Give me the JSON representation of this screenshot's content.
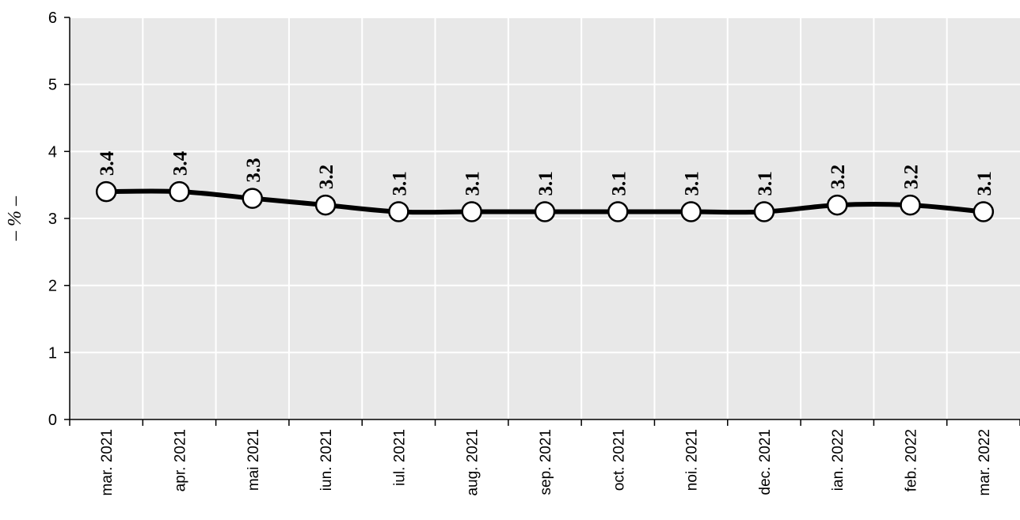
{
  "chart_data": {
    "type": "line",
    "title": "",
    "xlabel": "",
    "ylabel": "– % –",
    "ylim": [
      0,
      6
    ],
    "yticks": [
      "0",
      "1",
      "2",
      "3",
      "4",
      "5",
      "6"
    ],
    "grid": true,
    "categories": [
      "mar. 2021",
      "apr. 2021",
      "mai 2021",
      "iun. 2021",
      "iul. 2021",
      "aug. 2021",
      "sep. 2021",
      "oct. 2021",
      "noi. 2021",
      "dec. 2021",
      "ian. 2022",
      "feb. 2022",
      "mar. 2022"
    ],
    "series": [
      {
        "values": [
          3.4,
          3.4,
          3.3,
          3.2,
          3.1,
          3.1,
          3.1,
          3.1,
          3.1,
          3.1,
          3.2,
          3.2,
          3.1
        ],
        "labels": [
          "3.4",
          "3.4",
          "3.3",
          "3.2",
          "3.1",
          "3.1",
          "3.1",
          "3.1",
          "3.1",
          "3.1",
          "3.2",
          "3.2",
          "3.1"
        ]
      }
    ],
    "colors": {
      "plot_background": "#e8e8e8",
      "grid": "#ffffff",
      "line": "#000000",
      "marker_fill": "#ffffff"
    }
  }
}
